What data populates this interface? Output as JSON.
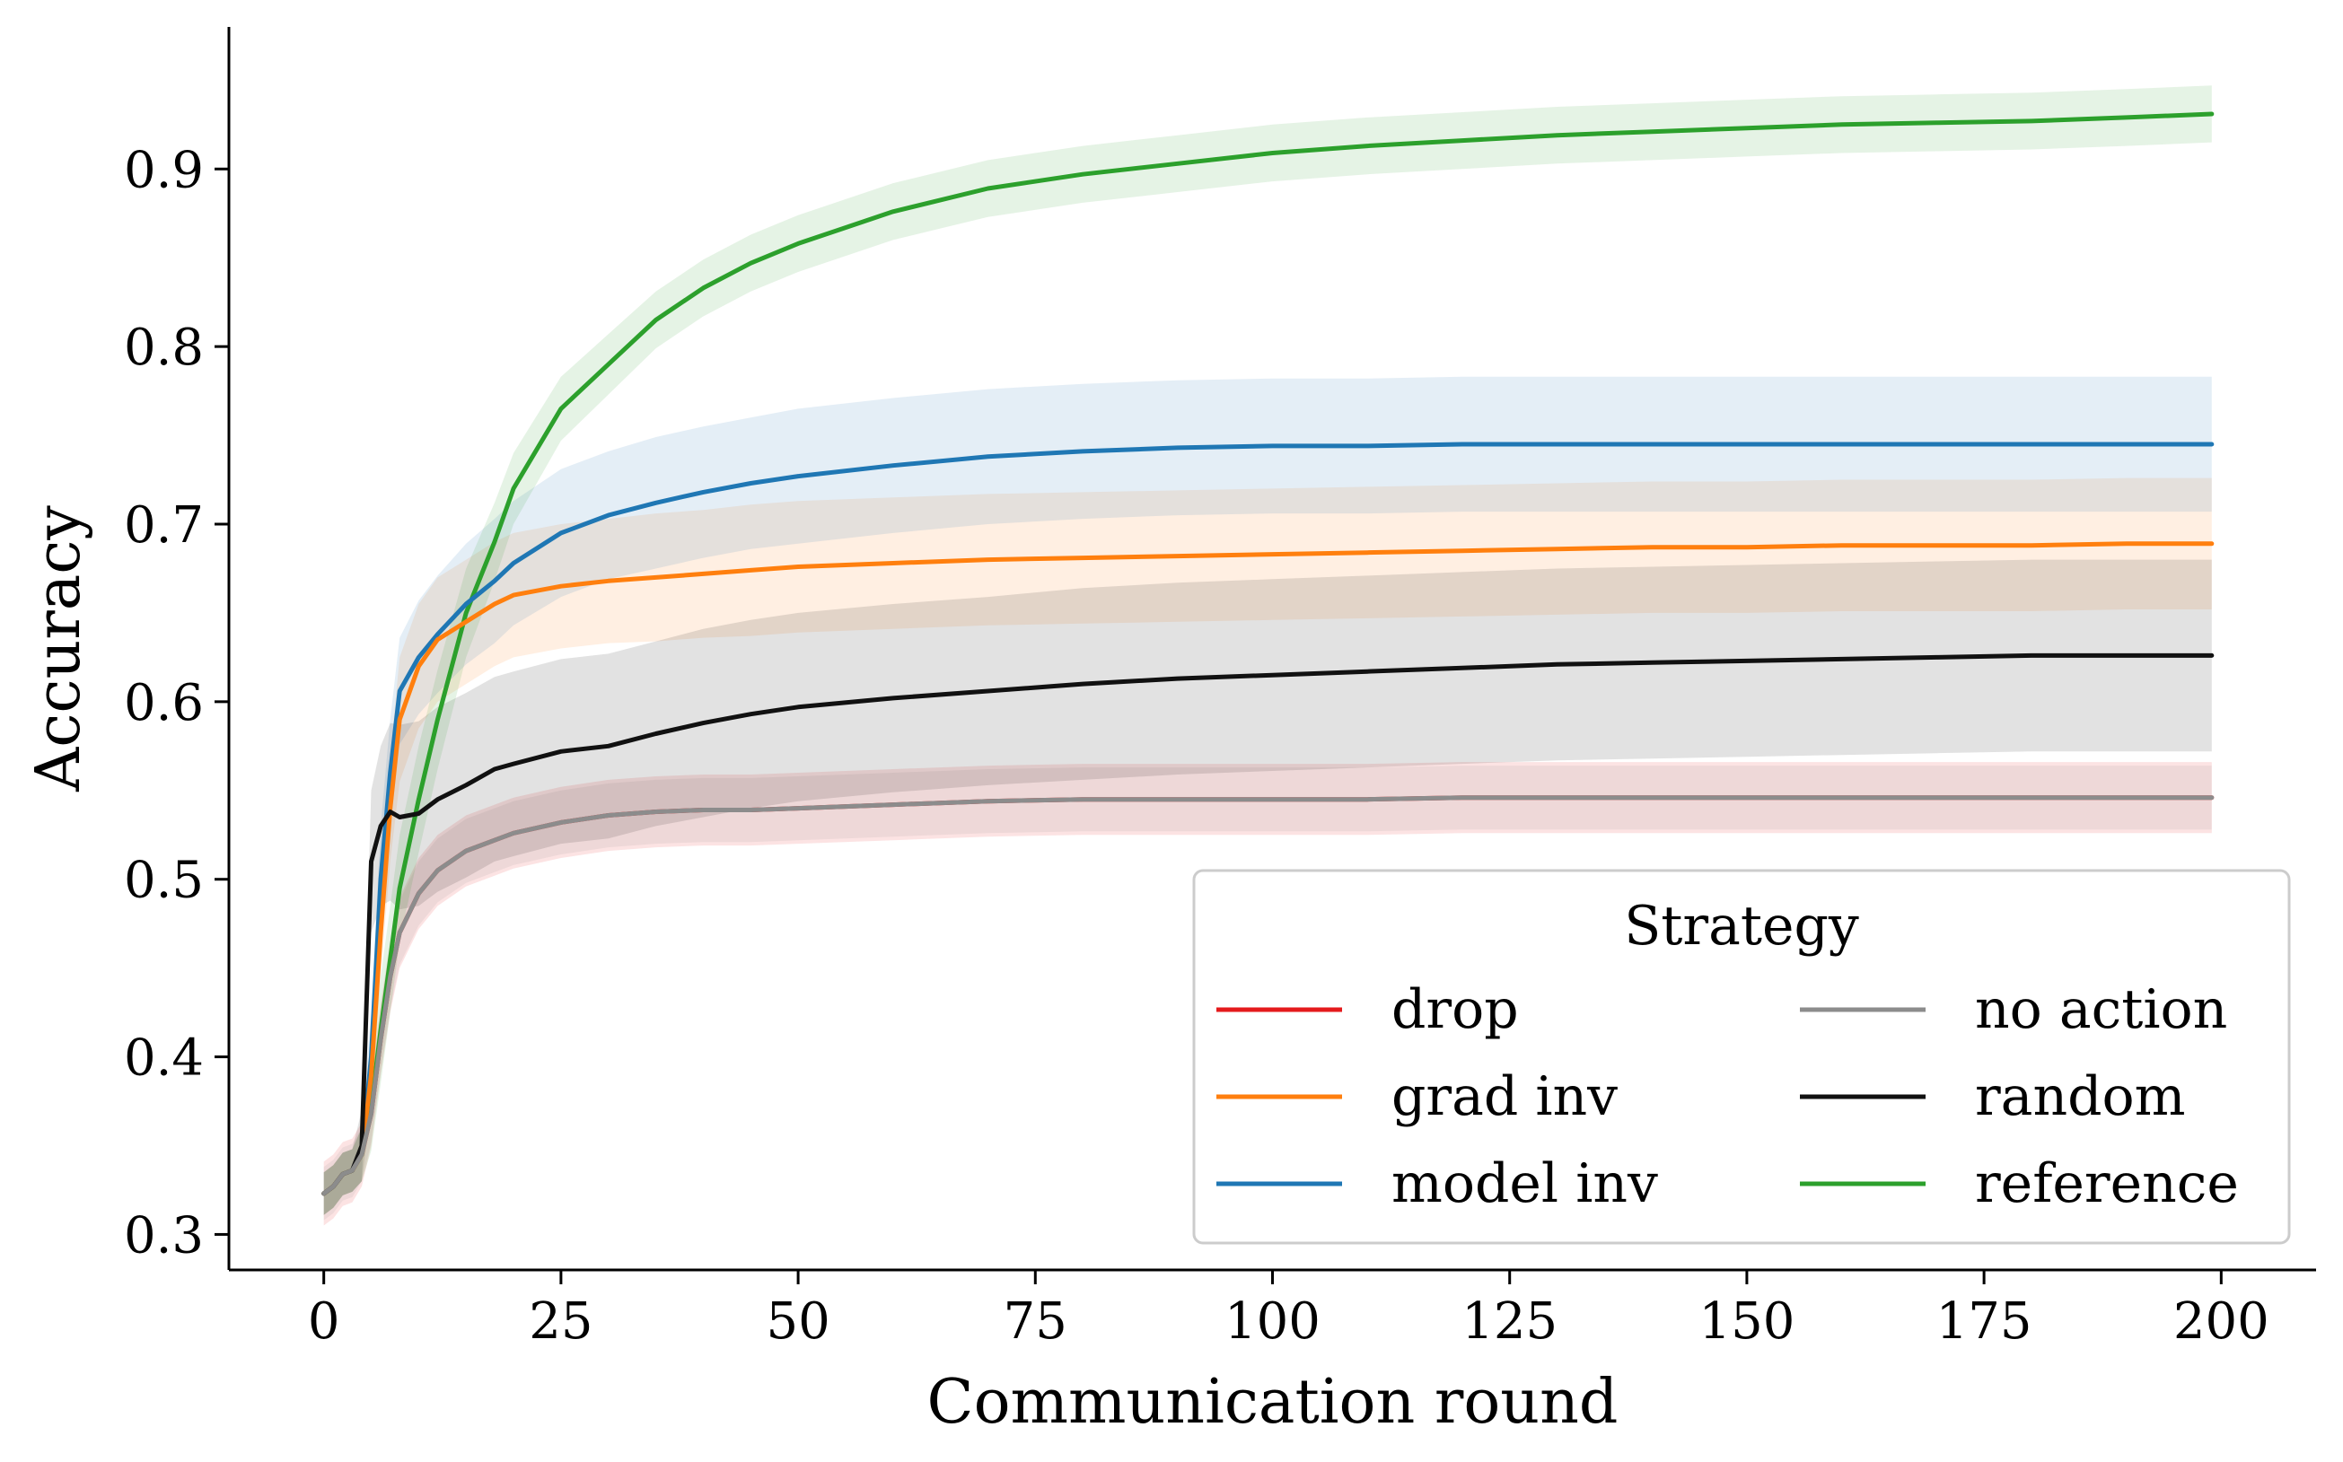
{
  "chart_data": {
    "type": "line",
    "title": "",
    "xlabel": "Communication round",
    "ylabel": "Accuracy",
    "xlim": [
      -10,
      210
    ],
    "ylim": [
      0.28,
      0.98
    ],
    "xticks": [
      0,
      25,
      50,
      75,
      100,
      125,
      150,
      175,
      200
    ],
    "xtick_labels": [
      "0",
      "25",
      "50",
      "75",
      "100",
      "125",
      "150",
      "175",
      "200"
    ],
    "yticks": [
      0.3,
      0.4,
      0.5,
      0.6,
      0.7,
      0.8,
      0.9
    ],
    "ytick_labels": [
      "0.3",
      "0.4",
      "0.5",
      "0.6",
      "0.7",
      "0.8",
      "0.9"
    ],
    "grid": false,
    "legend": {
      "title": "Strategy",
      "position": "bottom-right",
      "columns": 2,
      "entries": [
        "drop",
        "grad inv",
        "model inv",
        "no action",
        "random",
        "reference"
      ]
    },
    "x": [
      0,
      1,
      2,
      3,
      4,
      5,
      6,
      7,
      8,
      10,
      12,
      15,
      18,
      20,
      25,
      30,
      35,
      40,
      45,
      50,
      60,
      70,
      80,
      90,
      100,
      110,
      120,
      130,
      140,
      150,
      160,
      170,
      180,
      190,
      199
    ],
    "series": [
      {
        "name": "drop",
        "color": "#e41a1c",
        "values": [
          0.323,
          0.327,
          0.334,
          0.336,
          0.345,
          0.368,
          0.41,
          0.445,
          0.47,
          0.492,
          0.505,
          0.516,
          0.522,
          0.526,
          0.532,
          0.536,
          0.538,
          0.539,
          0.539,
          0.54,
          0.542,
          0.544,
          0.545,
          0.545,
          0.545,
          0.545,
          0.546,
          0.546,
          0.546,
          0.546,
          0.546,
          0.546,
          0.546,
          0.546,
          0.546
        ],
        "band": [
          0.018,
          0.018,
          0.018,
          0.018,
          0.018,
          0.018,
          0.02,
          0.02,
          0.02,
          0.02,
          0.02,
          0.02,
          0.02,
          0.02,
          0.02,
          0.02,
          0.02,
          0.02,
          0.02,
          0.02,
          0.02,
          0.02,
          0.02,
          0.02,
          0.02,
          0.02,
          0.02,
          0.02,
          0.02,
          0.02,
          0.02,
          0.02,
          0.02,
          0.02,
          0.02
        ]
      },
      {
        "name": "grad inv",
        "color": "#ff7f0e",
        "values": [
          0.323,
          0.327,
          0.334,
          0.336,
          0.345,
          0.39,
          0.47,
          0.54,
          0.59,
          0.62,
          0.635,
          0.645,
          0.655,
          0.66,
          0.665,
          0.668,
          0.67,
          0.672,
          0.674,
          0.676,
          0.678,
          0.68,
          0.681,
          0.682,
          0.683,
          0.684,
          0.685,
          0.686,
          0.687,
          0.687,
          0.688,
          0.688,
          0.688,
          0.689,
          0.689
        ],
        "band": [
          0.012,
          0.012,
          0.012,
          0.012,
          0.015,
          0.02,
          0.025,
          0.03,
          0.035,
          0.035,
          0.035,
          0.035,
          0.035,
          0.035,
          0.035,
          0.035,
          0.036,
          0.036,
          0.037,
          0.037,
          0.037,
          0.037,
          0.037,
          0.037,
          0.037,
          0.037,
          0.037,
          0.037,
          0.037,
          0.037,
          0.037,
          0.037,
          0.037,
          0.037,
          0.037
        ]
      },
      {
        "name": "model inv",
        "color": "#1f77b4",
        "values": [
          0.323,
          0.327,
          0.334,
          0.336,
          0.345,
          0.4,
          0.5,
          0.56,
          0.606,
          0.625,
          0.638,
          0.655,
          0.668,
          0.678,
          0.695,
          0.705,
          0.712,
          0.718,
          0.723,
          0.727,
          0.733,
          0.738,
          0.741,
          0.743,
          0.744,
          0.744,
          0.745,
          0.745,
          0.745,
          0.745,
          0.745,
          0.745,
          0.745,
          0.745,
          0.745
        ],
        "band": [
          0.012,
          0.012,
          0.012,
          0.012,
          0.015,
          0.025,
          0.03,
          0.03,
          0.03,
          0.032,
          0.033,
          0.034,
          0.035,
          0.035,
          0.036,
          0.036,
          0.037,
          0.037,
          0.037,
          0.038,
          0.038,
          0.038,
          0.038,
          0.038,
          0.038,
          0.038,
          0.038,
          0.038,
          0.038,
          0.038,
          0.038,
          0.038,
          0.038,
          0.038,
          0.038
        ]
      },
      {
        "name": "no action",
        "color": "#8c8c8c",
        "values": [
          0.323,
          0.327,
          0.334,
          0.336,
          0.345,
          0.368,
          0.41,
          0.445,
          0.47,
          0.492,
          0.505,
          0.516,
          0.522,
          0.526,
          0.532,
          0.536,
          0.538,
          0.539,
          0.539,
          0.54,
          0.542,
          0.544,
          0.545,
          0.545,
          0.545,
          0.545,
          0.546,
          0.546,
          0.546,
          0.546,
          0.546,
          0.546,
          0.546,
          0.546,
          0.546
        ],
        "band": [
          0.015,
          0.015,
          0.015,
          0.015,
          0.015,
          0.016,
          0.018,
          0.018,
          0.018,
          0.018,
          0.018,
          0.018,
          0.018,
          0.018,
          0.018,
          0.018,
          0.018,
          0.018,
          0.018,
          0.018,
          0.018,
          0.018,
          0.018,
          0.018,
          0.018,
          0.018,
          0.018,
          0.018,
          0.018,
          0.018,
          0.018,
          0.018,
          0.018,
          0.018,
          0.018
        ]
      },
      {
        "name": "random",
        "color": "#111111",
        "values": [
          0.323,
          0.327,
          0.334,
          0.336,
          0.35,
          0.51,
          0.53,
          0.538,
          0.535,
          0.537,
          0.545,
          0.553,
          0.562,
          0.565,
          0.572,
          0.575,
          0.582,
          0.588,
          0.593,
          0.597,
          0.602,
          0.606,
          0.61,
          0.613,
          0.615,
          0.617,
          0.619,
          0.621,
          0.622,
          0.623,
          0.624,
          0.625,
          0.626,
          0.626,
          0.626
        ],
        "band": [
          0.012,
          0.012,
          0.012,
          0.012,
          0.02,
          0.04,
          0.045,
          0.05,
          0.052,
          0.052,
          0.052,
          0.052,
          0.052,
          0.052,
          0.052,
          0.052,
          0.052,
          0.053,
          0.053,
          0.053,
          0.053,
          0.053,
          0.054,
          0.054,
          0.054,
          0.054,
          0.054,
          0.054,
          0.054,
          0.054,
          0.054,
          0.054,
          0.054,
          0.054,
          0.054
        ]
      },
      {
        "name": "reference",
        "color": "#2ca02c",
        "values": [
          0.323,
          0.327,
          0.334,
          0.336,
          0.345,
          0.372,
          0.415,
          0.455,
          0.495,
          0.545,
          0.59,
          0.65,
          0.69,
          0.72,
          0.765,
          0.79,
          0.815,
          0.833,
          0.847,
          0.858,
          0.876,
          0.889,
          0.897,
          0.903,
          0.909,
          0.913,
          0.916,
          0.919,
          0.921,
          0.923,
          0.925,
          0.926,
          0.927,
          0.929,
          0.931
        ],
        "band": [
          0.012,
          0.012,
          0.012,
          0.012,
          0.015,
          0.025,
          0.03,
          0.03,
          0.03,
          0.03,
          0.028,
          0.025,
          0.022,
          0.02,
          0.018,
          0.017,
          0.016,
          0.016,
          0.016,
          0.016,
          0.016,
          0.016,
          0.016,
          0.016,
          0.016,
          0.016,
          0.016,
          0.016,
          0.016,
          0.016,
          0.016,
          0.016,
          0.016,
          0.016,
          0.016
        ]
      }
    ]
  }
}
